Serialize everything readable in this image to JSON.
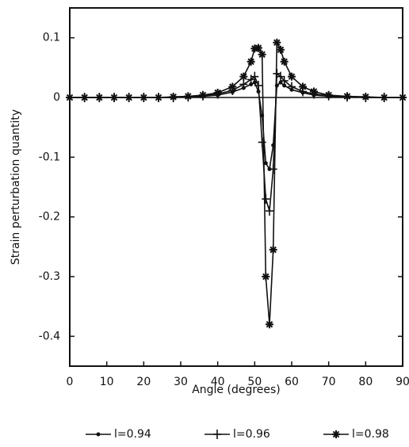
{
  "chart_data": {
    "type": "line",
    "xlabel": "Angle (degrees)",
    "ylabel": "Strain perturbation quantity",
    "x": [
      0,
      4,
      8,
      12,
      16,
      20,
      24,
      28,
      32,
      36,
      40,
      44,
      47,
      49,
      50,
      51,
      52,
      53,
      54,
      55,
      56,
      57,
      58,
      60,
      63,
      66,
      70,
      75,
      80,
      85,
      90
    ],
    "series": [
      {
        "name": "l=0.94",
        "color": "#111111",
        "marker": "circle",
        "values": [
          0,
          0,
          0,
          0,
          0,
          0,
          0,
          0,
          0.001,
          0.002,
          0.004,
          0.009,
          0.016,
          0.022,
          0.025,
          0.01,
          -0.03,
          -0.11,
          -0.12,
          -0.08,
          0.02,
          0.025,
          0.02,
          0.013,
          0.008,
          0.004,
          0.002,
          0.001,
          0,
          0,
          0
        ]
      },
      {
        "name": "l=0.96",
        "color": "#111111",
        "marker": "plus",
        "values": [
          0,
          0,
          0,
          0,
          0,
          0,
          0,
          0,
          0.001,
          0.003,
          0.006,
          0.012,
          0.022,
          0.03,
          0.035,
          0.02,
          -0.075,
          -0.17,
          -0.19,
          -0.12,
          0.04,
          0.035,
          0.028,
          0.018,
          0.01,
          0.006,
          0.003,
          0.001,
          0,
          0,
          0
        ]
      },
      {
        "name": "l=0.98",
        "color": "#111111",
        "marker": "asterisk",
        "values": [
          0,
          0,
          0,
          0,
          0,
          0,
          0,
          0.001,
          0.002,
          0.004,
          0.008,
          0.018,
          0.035,
          0.06,
          0.082,
          0.083,
          0.072,
          -0.3,
          -0.38,
          -0.255,
          0.092,
          0.08,
          0.06,
          0.035,
          0.018,
          0.01,
          0.004,
          0.002,
          0.001,
          0,
          0
        ]
      }
    ],
    "xlim": [
      0,
      90
    ],
    "xticks": [
      0,
      10,
      20,
      30,
      40,
      50,
      60,
      70,
      80,
      90
    ],
    "ylim": [
      -0.45,
      0.15
    ],
    "yticks": [
      0.1,
      0,
      -0.1,
      -0.2,
      -0.3,
      -0.4
    ],
    "legend": "bottom"
  }
}
